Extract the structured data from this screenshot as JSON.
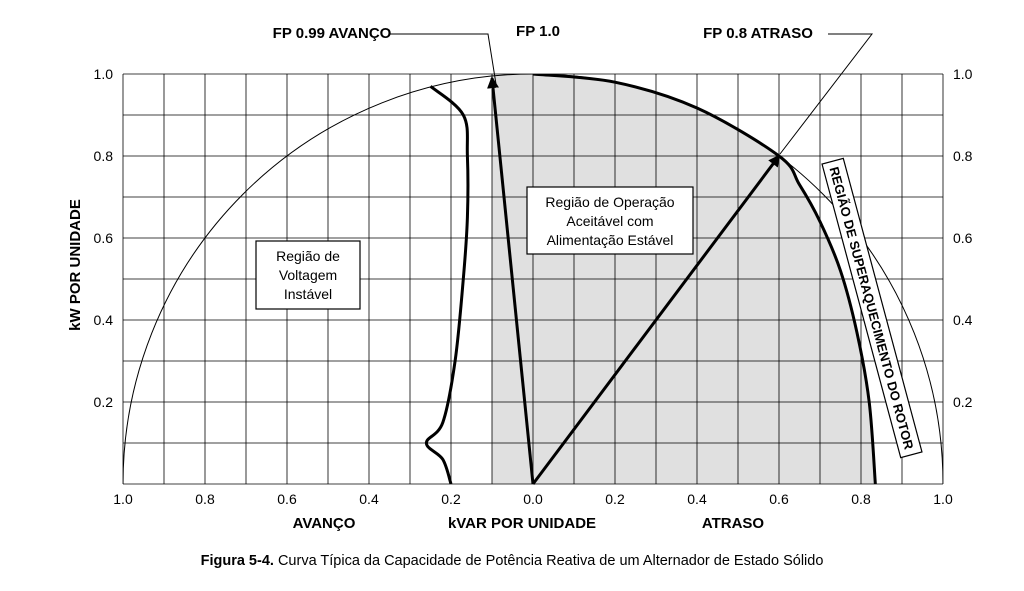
{
  "chart_data": {
    "type": "line",
    "caption_prefix": "Figura 5-4.",
    "caption_text": "Curva Típica da Capacidade de Potência Reativa de um Alternador de Estado Sólido",
    "ylabel": "kW POR UNIDADE",
    "xlabel": "kVAR POR UNIDADE",
    "xlabel_left": "AVANÇO",
    "xlabel_right": "ATRASO",
    "xlim": [
      -1.0,
      1.0
    ],
    "ylim": [
      0.0,
      1.0
    ],
    "grid": true,
    "x_ticks": [
      {
        "value": -1.0,
        "label": "1.0"
      },
      {
        "value": -0.8,
        "label": "0.8"
      },
      {
        "value": -0.6,
        "label": "0.6"
      },
      {
        "value": -0.4,
        "label": "0.4"
      },
      {
        "value": -0.2,
        "label": "0.2"
      },
      {
        "value": 0.0,
        "label": "0.0"
      },
      {
        "value": 0.2,
        "label": "0.2"
      },
      {
        "value": 0.4,
        "label": "0.4"
      },
      {
        "value": 0.6,
        "label": "0.6"
      },
      {
        "value": 0.8,
        "label": "0.8"
      },
      {
        "value": 1.0,
        "label": "1.0"
      }
    ],
    "y_ticks": [
      {
        "value": 0.2,
        "label": "0.2"
      },
      {
        "value": 0.4,
        "label": "0.4"
      },
      {
        "value": 0.6,
        "label": "0.6"
      },
      {
        "value": 0.8,
        "label": "0.8"
      },
      {
        "value": 1.0,
        "label": "1.0"
      }
    ],
    "annotations": {
      "pf_lead": "FP 0.99 AVANÇO",
      "pf_unity": "FP 1.0",
      "pf_lag": "FP 0.8 ATRASO",
      "rotor_region": "REGIÃO DE SUPERAQUECIMENTO DO ROTOR"
    },
    "regions": {
      "acceptable": [
        "Região de Operação",
        "Aceitável com",
        "Alimentação Estável"
      ],
      "unstable": [
        "Região de",
        "Voltagem",
        "Instável"
      ]
    },
    "vectors": [
      {
        "name": "FP 0.99 AVANÇO",
        "from": [
          0.0,
          0.0
        ],
        "to": [
          -0.1,
          0.99
        ]
      },
      {
        "name": "FP 0.8 ATRASO",
        "from": [
          0.0,
          0.0
        ],
        "to": [
          0.6,
          0.8
        ]
      }
    ],
    "series": [
      {
        "name": "unit_circle",
        "points": [
          [
            -1.0,
            0.0
          ],
          [
            -0.9,
            0.436
          ],
          [
            -0.8,
            0.6
          ],
          [
            -0.6,
            0.8
          ],
          [
            -0.4,
            0.917
          ],
          [
            -0.2,
            0.98
          ],
          [
            0.0,
            1.0
          ],
          [
            0.2,
            0.98
          ],
          [
            0.4,
            0.917
          ],
          [
            0.6,
            0.8
          ],
          [
            0.8,
            0.6
          ],
          [
            0.9,
            0.436
          ],
          [
            1.0,
            0.0
          ]
        ]
      },
      {
        "name": "capability_curve",
        "points": [
          [
            0.0,
            1.0
          ],
          [
            0.2,
            0.98
          ],
          [
            0.4,
            0.917
          ],
          [
            0.6,
            0.8
          ],
          [
            0.65,
            0.73
          ],
          [
            0.7,
            0.64
          ],
          [
            0.75,
            0.52
          ],
          [
            0.79,
            0.37
          ],
          [
            0.82,
            0.2
          ],
          [
            0.835,
            0.0
          ]
        ]
      },
      {
        "name": "unstable_limit",
        "points": [
          [
            -0.25,
            0.97
          ],
          [
            -0.17,
            0.9
          ],
          [
            -0.16,
            0.8
          ],
          [
            -0.16,
            0.65
          ],
          [
            -0.17,
            0.5
          ],
          [
            -0.19,
            0.3
          ],
          [
            -0.22,
            0.15
          ],
          [
            -0.26,
            0.1
          ],
          [
            -0.22,
            0.06
          ],
          [
            -0.2,
            0.0
          ]
        ]
      }
    ],
    "shaded_region": {
      "x_from": -0.1,
      "colors": {
        "fill": "#e0e0e0"
      }
    },
    "colors": {
      "fill": "#e0e0e0",
      "line": "#000000",
      "grid": "#000000"
    }
  }
}
